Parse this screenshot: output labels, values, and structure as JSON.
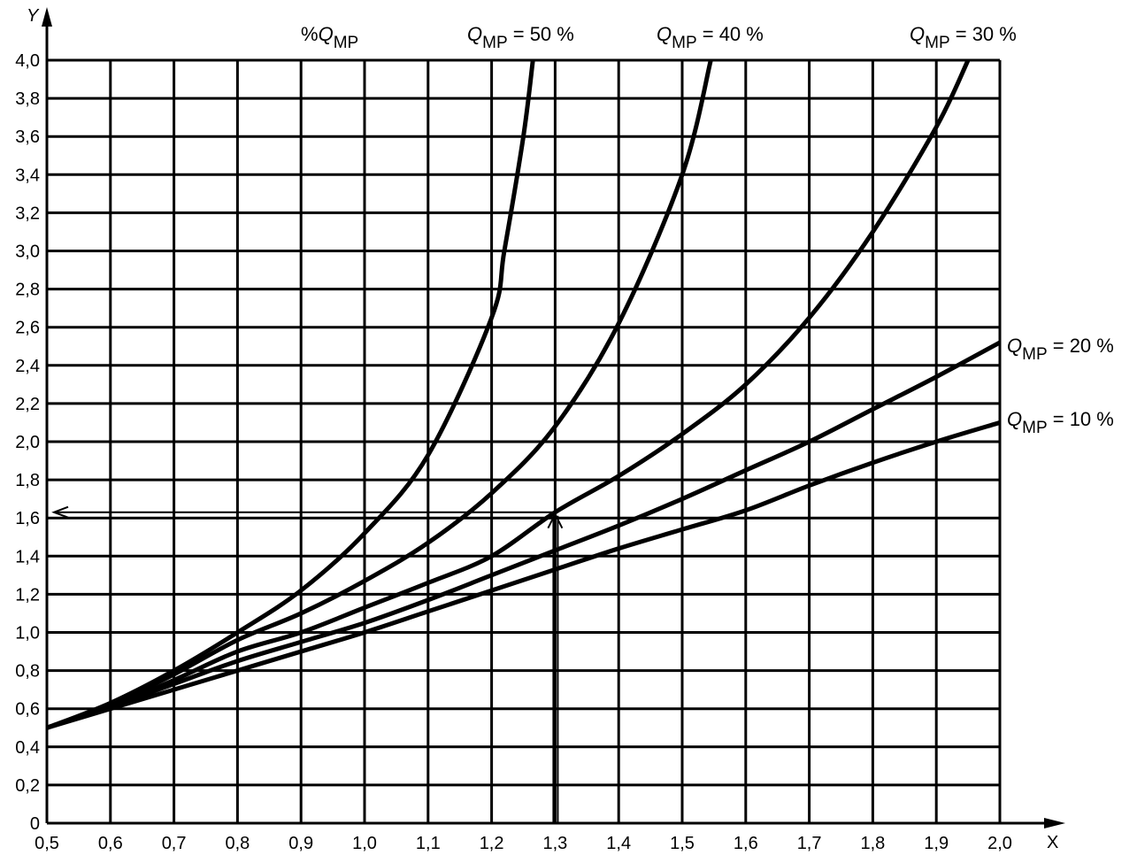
{
  "chart_data": {
    "type": "line",
    "title": "",
    "xlabel": "X",
    "ylabel": "Y",
    "xlim": [
      0.5,
      2.0
    ],
    "ylim": [
      0,
      4.0
    ],
    "grid": true,
    "x_ticks": [
      0.5,
      0.6,
      0.7,
      0.8,
      0.9,
      1.0,
      1.1,
      1.2,
      1.3,
      1.4,
      1.5,
      1.6,
      1.7,
      1.8,
      1.9,
      2.0
    ],
    "x_tick_labels": [
      "0,5",
      "0,6",
      "0,7",
      "0,8",
      "0,9",
      "1,0",
      "1,1",
      "1,2",
      "1,3",
      "1,4",
      "1,5",
      "1,6",
      "1,7",
      "1,8",
      "1,9",
      "2,0"
    ],
    "y_ticks": [
      0,
      0.2,
      0.4,
      0.6,
      0.8,
      1.0,
      1.2,
      1.4,
      1.6,
      1.8,
      2.0,
      2.2,
      2.4,
      2.6,
      2.8,
      3.0,
      3.2,
      3.4,
      3.6,
      3.8,
      4.0
    ],
    "y_tick_labels": [
      "0",
      "0,2",
      "0,4",
      "0,6",
      "0,8",
      "1,0",
      "1,2",
      "1,4",
      "1,6",
      "1,8",
      "2,0",
      "2,2",
      "2,4",
      "2,6",
      "2,8",
      "3,0",
      "3,2",
      "3,4",
      "3,6",
      "3,8",
      "4,0"
    ],
    "legend_header": {
      "prefix": "%",
      "q": "Q",
      "sub": "MP"
    },
    "series": [
      {
        "name": "Q_MP = 50 %",
        "q": "Q",
        "sub": "MP",
        "suffix": " = 50 %",
        "x": [
          0.5,
          0.6,
          0.7,
          0.8,
          0.9,
          1.0,
          1.1,
          1.2,
          1.22,
          1.25,
          1.265
        ],
        "y": [
          0.5,
          0.63,
          0.8,
          1.0,
          1.22,
          1.52,
          1.93,
          2.65,
          3.0,
          3.6,
          4.0
        ]
      },
      {
        "name": "Q_MP = 40 %",
        "q": "Q",
        "sub": "MP",
        "suffix": " = 40 %",
        "x": [
          0.5,
          0.6,
          0.7,
          0.8,
          0.9,
          1.0,
          1.1,
          1.2,
          1.3,
          1.4,
          1.5,
          1.545
        ],
        "y": [
          0.5,
          0.62,
          0.78,
          0.96,
          1.1,
          1.27,
          1.47,
          1.73,
          2.08,
          2.62,
          3.4,
          4.0
        ]
      },
      {
        "name": "Q_MP = 30 %",
        "q": "Q",
        "sub": "MP",
        "suffix": " = 30 %",
        "x": [
          0.5,
          0.6,
          0.7,
          0.8,
          0.9,
          1.0,
          1.1,
          1.2,
          1.3,
          1.4,
          1.5,
          1.6,
          1.7,
          1.8,
          1.9,
          1.95
        ],
        "y": [
          0.5,
          0.61,
          0.75,
          0.9,
          1.0,
          1.13,
          1.26,
          1.4,
          1.63,
          1.82,
          2.04,
          2.3,
          2.65,
          3.1,
          3.65,
          4.0
        ]
      },
      {
        "name": "Q_MP = 20 %",
        "q": "Q",
        "sub": "MP",
        "suffix": " = 20 %",
        "x": [
          0.5,
          0.6,
          0.7,
          0.8,
          0.9,
          1.0,
          1.1,
          1.2,
          1.3,
          1.4,
          1.5,
          1.6,
          1.7,
          1.8,
          1.9,
          2.0
        ],
        "y": [
          0.5,
          0.61,
          0.73,
          0.85,
          0.95,
          1.05,
          1.17,
          1.3,
          1.43,
          1.56,
          1.7,
          1.85,
          2.0,
          2.17,
          2.34,
          2.52
        ]
      },
      {
        "name": "Q_MP = 10 %",
        "q": "Q",
        "sub": "MP",
        "suffix": " = 10 %",
        "x": [
          0.5,
          0.6,
          0.7,
          0.8,
          0.9,
          1.0,
          1.1,
          1.2,
          1.3,
          1.4,
          1.5,
          1.6,
          1.7,
          1.8,
          1.9,
          2.0
        ],
        "y": [
          0.5,
          0.6,
          0.7,
          0.8,
          0.9,
          1.0,
          1.11,
          1.22,
          1.33,
          1.44,
          1.54,
          1.64,
          1.77,
          1.89,
          2.0,
          2.1
        ]
      }
    ],
    "annotation": {
      "type": "reading-arrow",
      "x": 1.3,
      "y": 1.63
    }
  }
}
